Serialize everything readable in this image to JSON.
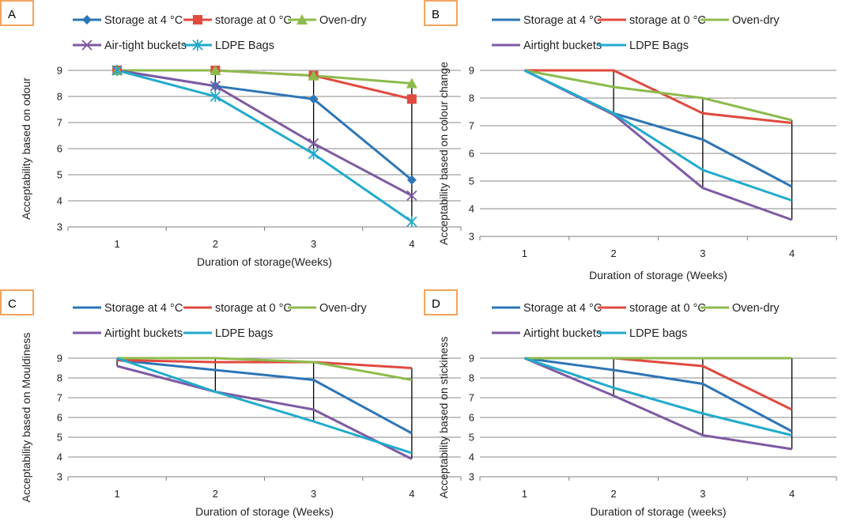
{
  "chart_data": [
    {
      "type": "line",
      "panel": "A",
      "x": [
        1,
        2,
        3,
        4
      ],
      "categories": [
        "1",
        "2",
        "3",
        "4"
      ],
      "ylim": [
        3,
        9
      ],
      "yticks": [
        "3",
        "4",
        "5",
        "6",
        "7",
        "8",
        "9"
      ],
      "xlabel": "Duration of storage(Weeks)",
      "ylabel": "Acceptability based on odour",
      "grid": true,
      "legend_position": "top",
      "drop_lines": true,
      "series": [
        {
          "name": "Storage at 4 °C",
          "color": "#2E75B6",
          "marker": "diamond",
          "values": [
            9,
            8.4,
            7.9,
            4.8
          ]
        },
        {
          "name": "storage at 0 °C",
          "color": "#E04A3F",
          "marker": "square",
          "values": [
            9,
            9,
            8.8,
            7.9
          ]
        },
        {
          "name": "Oven-dry",
          "color": "#8DBB4C",
          "marker": "triangle",
          "values": [
            9,
            9,
            8.8,
            8.5
          ]
        },
        {
          "name": "Air-tight buckets",
          "color": "#7E5AA2",
          "marker": "x",
          "values": [
            9,
            8.4,
            6.2,
            4.2
          ]
        },
        {
          "name": "LDPE Bags",
          "color": "#22AACC",
          "marker": "asterisk",
          "values": [
            9,
            8.0,
            5.8,
            3.2
          ]
        }
      ]
    },
    {
      "type": "line",
      "panel": "B",
      "x": [
        1,
        2,
        3,
        4
      ],
      "categories": [
        "1",
        "2",
        "3",
        "4"
      ],
      "ylim": [
        3,
        9
      ],
      "yticks": [
        "3",
        "4",
        "5",
        "6",
        "7",
        "8",
        "9"
      ],
      "xlabel": "Duration of storage (Weeks)",
      "ylabel": "Acceptability based on colour change",
      "grid": true,
      "legend_position": "top",
      "drop_lines": true,
      "series": [
        {
          "name": "Storage at 4 °C",
          "color": "#2E75B6",
          "marker": "none",
          "values": [
            9,
            7.45,
            6.5,
            4.8
          ]
        },
        {
          "name": "storage at 0 °C",
          "color": "#E04A3F",
          "marker": "none",
          "values": [
            9,
            9,
            7.45,
            7.1
          ]
        },
        {
          "name": "Oven-dry",
          "color": "#8DBB4C",
          "marker": "none",
          "values": [
            9,
            8.4,
            8.0,
            7.2
          ]
        },
        {
          "name": "Airtight buckets",
          "color": "#7E5AA2",
          "marker": "none",
          "values": [
            9,
            7.4,
            4.75,
            3.6
          ]
        },
        {
          "name": "LDPE Bags",
          "color": "#22AACC",
          "marker": "none",
          "values": [
            9,
            7.45,
            5.4,
            4.3
          ]
        }
      ]
    },
    {
      "type": "line",
      "panel": "C",
      "x": [
        1,
        2,
        3,
        4
      ],
      "categories": [
        "1",
        "2",
        "3",
        "4"
      ],
      "ylim": [
        3,
        9
      ],
      "yticks": [
        "3",
        "4",
        "5",
        "6",
        "7",
        "8",
        "9"
      ],
      "xlabel": "Duration of storage (Weeks)",
      "ylabel": "Acceptability based on Mouldiness",
      "grid": true,
      "legend_position": "top",
      "drop_lines": true,
      "series": [
        {
          "name": "Storage at 4 °C",
          "color": "#2E75B6",
          "marker": "none",
          "values": [
            8.9,
            8.4,
            7.9,
            5.2
          ]
        },
        {
          "name": "storage at 0 °C",
          "color": "#E04A3F",
          "marker": "none",
          "values": [
            8.9,
            8.8,
            8.8,
            8.5
          ]
        },
        {
          "name": "Oven-dry",
          "color": "#8DBB4C",
          "marker": "none",
          "values": [
            9,
            9,
            8.8,
            7.9
          ]
        },
        {
          "name": "Airtight buckets",
          "color": "#7E5AA2",
          "marker": "none",
          "values": [
            8.6,
            7.3,
            6.4,
            3.9
          ]
        },
        {
          "name": "LDPE bags",
          "color": "#22AACC",
          "marker": "none",
          "values": [
            9,
            7.3,
            5.8,
            4.2
          ]
        }
      ]
    },
    {
      "type": "line",
      "panel": "D",
      "x": [
        1,
        2,
        3,
        4
      ],
      "categories": [
        "1",
        "2",
        "3",
        "4"
      ],
      "ylim": [
        3,
        9
      ],
      "yticks": [
        "3",
        "4",
        "5",
        "6",
        "7",
        "8",
        "9"
      ],
      "xlabel": "Duration of storage (weeks)",
      "ylabel": "Acceptability based on stickiness",
      "grid": true,
      "legend_position": "top",
      "drop_lines": true,
      "series": [
        {
          "name": "Storage at 4 °C",
          "color": "#2E75B6",
          "marker": "none",
          "values": [
            9,
            8.4,
            7.7,
            5.3
          ]
        },
        {
          "name": "storage at 0 °C",
          "color": "#E04A3F",
          "marker": "none",
          "values": [
            9,
            9,
            8.6,
            6.4
          ]
        },
        {
          "name": "Oven-dry",
          "color": "#8DBB4C",
          "marker": "none",
          "values": [
            9,
            9,
            9,
            9
          ]
        },
        {
          "name": "Airtight buckets",
          "color": "#7E5AA2",
          "marker": "none",
          "values": [
            9,
            7.1,
            5.1,
            4.4
          ]
        },
        {
          "name": "LDPE bags",
          "color": "#22AACC",
          "marker": "none",
          "values": [
            9,
            7.5,
            6.2,
            5.1
          ]
        }
      ]
    }
  ]
}
